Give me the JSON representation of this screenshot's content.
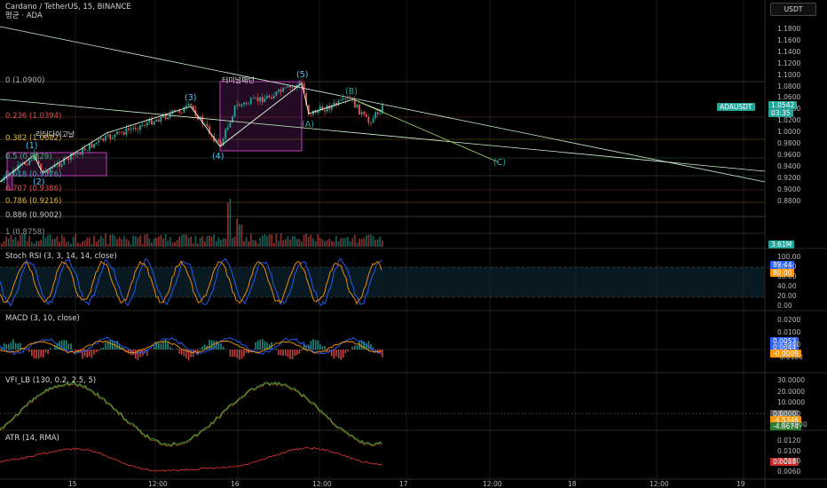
{
  "header": {
    "title": "Cardano / TetherUS, 15, BINANCE",
    "subtitle": "평균 · ADA",
    "currency_button": "USDT"
  },
  "price_axis": {
    "labels": [
      "1.1800",
      "1.1600",
      "1.1400",
      "1.1200",
      "1.1000",
      "1.0800",
      "1.0600",
      "1.0400",
      "1.0200",
      "1.0000",
      "0.9800",
      "0.9600",
      "0.9400",
      "0.9200",
      "0.9000",
      "0.8800"
    ],
    "last_tag": "ADAUSDT",
    "last_price": "1.0542",
    "last_countdown": "03:35",
    "volume_tag": "3.61M"
  },
  "fib_levels": [
    {
      "label": "0 (1.0900)",
      "color": "#b0b0b0"
    },
    {
      "label": "0.236 (1.0394)",
      "color": "#e05050"
    },
    {
      "label": "0.382 (1.0082)",
      "color": "#e0b040"
    },
    {
      "label": "0.5 (0.9829)",
      "color": "#40b070"
    },
    {
      "label": "0.618 (0.9576)",
      "color": "#50a0b0"
    },
    {
      "label": "0.707 (0.9386)",
      "color": "#e05050"
    },
    {
      "label": "0.786 (0.9216)",
      "color": "#e0b040"
    },
    {
      "label": "0.886 (0.9002)",
      "color": "#c0c0c0"
    },
    {
      "label": "1 (0.8758)",
      "color": "#909090"
    }
  ],
  "waves": {
    "w1": "(1)",
    "w2": "(2)",
    "w3": "(3)",
    "w4": "(4)",
    "w5": "(5)",
    "wa": "(A)",
    "wb": "(B)",
    "wc": "(C)"
  },
  "annotations": {
    "left_box": "리딩다이고날",
    "top_box": "터미널패턴"
  },
  "indicators": {
    "stoch": {
      "title": "Stoch RSI (3, 3, 14, 14, close)",
      "axis": [
        "100.00",
        "80.00",
        "60.00",
        "40.00",
        "20.00",
        "0.00"
      ],
      "tag_k": "89.44",
      "tag_d": "80.00"
    },
    "macd": {
      "title": "MACD (3, 10, close)",
      "axis": [
        "0.0200",
        "0.0100",
        "0.0000",
        "-0.0100"
      ],
      "tag1": "0.0053",
      "tag2": "0.0044",
      "tag3": "-0.0009"
    },
    "vfi": {
      "title": "VFI_LB (130, 0.2, 2.5, 5)",
      "axis": [
        "30.0000",
        "20.0000",
        "10.0000",
        "0.0000",
        "-10.0000"
      ],
      "tag1": "0.0000",
      "tag2": "-4.5346",
      "tag3": "-4.8674"
    },
    "atr": {
      "title": "ATR (14, RMA)",
      "axis": [
        "0.0120",
        "0.0100",
        "0.0080",
        "0.0060"
      ],
      "tag": "0.0088"
    }
  },
  "time_axis": [
    "15",
    "12:00",
    "16",
    "12:00",
    "17",
    "12:00",
    "18",
    "12:00",
    "19"
  ],
  "colors": {
    "up": "#26a69a",
    "down": "#ef5350",
    "k": "#2962ff",
    "d": "#ff9800",
    "macd": "#2962ff",
    "signal": "#ff9800",
    "vfi": "#4caf50",
    "atr": "#d32f2f",
    "box": "#c040c0",
    "trend": "#d0f0d0"
  }
}
